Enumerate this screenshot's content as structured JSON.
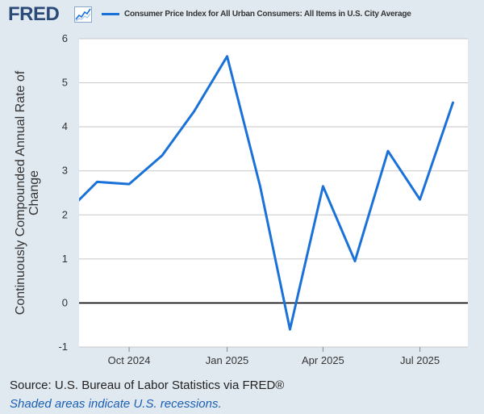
{
  "header": {
    "logo_text": "FRED",
    "logo_icon": "line-chart-icon"
  },
  "colors": {
    "background": "#e1e9f0",
    "plot_background": "#ffffff",
    "series": "#1a72d8",
    "grid": "#c8c8c8",
    "zero_line": "#000000",
    "logo": "#2b4a78",
    "note": "#1a5fb4"
  },
  "chart_data": {
    "type": "line",
    "title": "",
    "ylabel": "Continuously Compounded Annual Rate of Change",
    "xlabel": "",
    "ylim": [
      -1,
      6
    ],
    "xlim": [
      "2024-08-15",
      "2025-08-15"
    ],
    "yticks": [
      -1,
      0,
      1,
      2,
      3,
      4,
      5,
      6
    ],
    "xticks": [
      {
        "date": "2024-10-01",
        "label": "Oct 2024"
      },
      {
        "date": "2025-01-01",
        "label": "Jan 2025"
      },
      {
        "date": "2025-04-01",
        "label": "Apr 2025"
      },
      {
        "date": "2025-07-01",
        "label": "Jul 2025"
      }
    ],
    "grid": true,
    "legend_position": "top",
    "series": [
      {
        "name": "Consumer Price Index for All Urban Consumers: All Items in U.S. City Average",
        "x": [
          "2024-08-01",
          "2024-09-01",
          "2024-10-01",
          "2024-11-01",
          "2024-12-01",
          "2025-01-01",
          "2025-02-01",
          "2025-03-01",
          "2025-04-01",
          "2025-05-01",
          "2025-06-01",
          "2025-07-01",
          "2025-08-01"
        ],
        "values": [
          2.0,
          2.75,
          2.7,
          3.35,
          4.35,
          5.6,
          2.65,
          -0.6,
          2.65,
          0.95,
          3.45,
          2.35,
          4.55
        ]
      }
    ]
  },
  "footer": {
    "source": "Source: U.S. Bureau of Labor Statistics via FRED®",
    "note": "Shaded areas indicate U.S. recessions."
  }
}
